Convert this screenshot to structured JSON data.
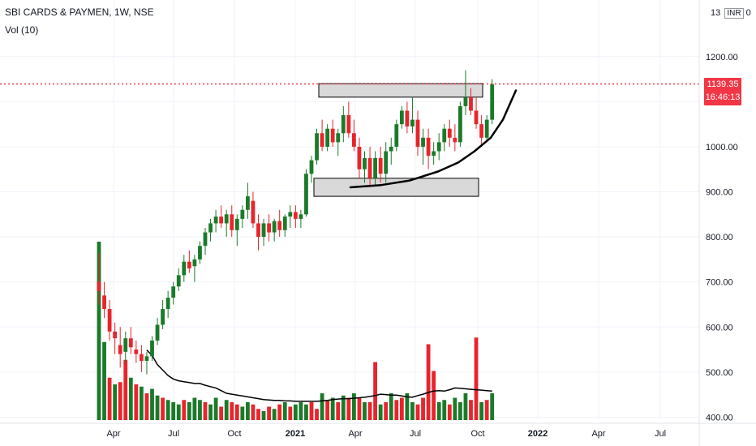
{
  "header": {
    "symbol": "SBI CARDS & PAYMEN, 1W, NSE",
    "volume_label": "Vol (10)"
  },
  "top_right": {
    "value": "13",
    "unit": "INR",
    "suffix": "0"
  },
  "last_price": {
    "price": "1139.35",
    "countdown": "16:46:13"
  },
  "colors": {
    "up": "#1b7a2a",
    "down": "#e8242c",
    "price_line": "#f23645",
    "zone_fill": "#d9d9d9",
    "curve": "#000000"
  },
  "chart_data": {
    "type": "candlestick",
    "ylim": [
      390,
      1250
    ],
    "y_ticks": [
      "1200.00",
      "1100.00",
      "1000.00",
      "900.00",
      "800.00",
      "700.00",
      "600.00",
      "500.00",
      "400.00"
    ],
    "x_ticks": [
      {
        "label": "Apr",
        "bold": false
      },
      {
        "label": "Jul",
        "bold": false
      },
      {
        "label": "Oct",
        "bold": false
      },
      {
        "label": "2021",
        "bold": true
      },
      {
        "label": "Apr",
        "bold": false
      },
      {
        "label": "Jul",
        "bold": false
      },
      {
        "label": "Oct",
        "bold": false
      },
      {
        "label": "2022",
        "bold": true
      },
      {
        "label": "Apr",
        "bold": false
      },
      {
        "label": "Jul",
        "bold": false
      }
    ],
    "candles": [
      [
        700,
        765,
        650,
        680
      ],
      [
        670,
        700,
        620,
        640
      ],
      [
        640,
        660,
        570,
        590
      ],
      [
        590,
        610,
        540,
        575
      ],
      [
        560,
        600,
        510,
        540
      ],
      [
        545,
        590,
        520,
        575
      ],
      [
        575,
        600,
        540,
        555
      ],
      [
        550,
        570,
        520,
        540
      ],
      [
        540,
        560,
        500,
        525
      ],
      [
        525,
        545,
        495,
        535
      ],
      [
        535,
        580,
        525,
        570
      ],
      [
        570,
        620,
        560,
        605
      ],
      [
        605,
        660,
        595,
        640
      ],
      [
        640,
        680,
        620,
        665
      ],
      [
        665,
        700,
        650,
        690
      ],
      [
        690,
        730,
        680,
        715
      ],
      [
        715,
        760,
        700,
        745
      ],
      [
        745,
        770,
        720,
        730
      ],
      [
        735,
        760,
        700,
        750
      ],
      [
        750,
        790,
        740,
        780
      ],
      [
        780,
        820,
        760,
        810
      ],
      [
        810,
        840,
        790,
        830
      ],
      [
        830,
        860,
        810,
        845
      ],
      [
        845,
        870,
        820,
        830
      ],
      [
        830,
        860,
        800,
        850
      ],
      [
        850,
        870,
        800,
        815
      ],
      [
        815,
        850,
        780,
        840
      ],
      [
        840,
        870,
        820,
        860
      ],
      [
        860,
        920,
        840,
        890
      ],
      [
        880,
        900,
        820,
        830
      ],
      [
        830,
        850,
        770,
        800
      ],
      [
        800,
        840,
        780,
        830
      ],
      [
        830,
        850,
        790,
        810
      ],
      [
        810,
        840,
        790,
        835
      ],
      [
        835,
        860,
        800,
        815
      ],
      [
        815,
        850,
        800,
        845
      ],
      [
        845,
        870,
        820,
        855
      ],
      [
        855,
        870,
        820,
        840
      ],
      [
        840,
        860,
        820,
        850
      ],
      [
        850,
        950,
        845,
        940
      ],
      [
        940,
        980,
        920,
        970
      ],
      [
        970,
        1040,
        960,
        1030
      ],
      [
        1030,
        1060,
        990,
        1000
      ],
      [
        1000,
        1050,
        990,
        1040
      ],
      [
        1040,
        1060,
        1000,
        1010
      ],
      [
        1010,
        1040,
        980,
        1030
      ],
      [
        1030,
        1090,
        1010,
        1070
      ],
      [
        1070,
        1100,
        1020,
        1030
      ],
      [
        1030,
        1060,
        990,
        1000
      ],
      [
        1000,
        1020,
        930,
        950
      ],
      [
        950,
        990,
        920,
        975
      ],
      [
        975,
        1000,
        910,
        930
      ],
      [
        930,
        990,
        915,
        975
      ],
      [
        975,
        1000,
        920,
        940
      ],
      [
        940,
        1010,
        920,
        990
      ],
      [
        990,
        1020,
        960,
        1000
      ],
      [
        1000,
        1060,
        990,
        1050
      ],
      [
        1050,
        1090,
        1040,
        1080
      ],
      [
        1080,
        1100,
        1030,
        1045
      ],
      [
        1045,
        1110,
        1030,
        1060
      ],
      [
        1060,
        1080,
        980,
        1000
      ],
      [
        1000,
        1040,
        960,
        1020
      ],
      [
        1020,
        1040,
        950,
        980
      ],
      [
        980,
        1010,
        960,
        990
      ],
      [
        990,
        1030,
        970,
        1010
      ],
      [
        1010,
        1050,
        990,
        1040
      ],
      [
        1040,
        1060,
        1000,
        1020
      ],
      [
        1020,
        1050,
        990,
        1010
      ],
      [
        1010,
        1100,
        1000,
        1090
      ],
      [
        1090,
        1170,
        1070,
        1110
      ],
      [
        1110,
        1130,
        1070,
        1080
      ],
      [
        1080,
        1110,
        1040,
        1050
      ],
      [
        1050,
        1070,
        1000,
        1020
      ],
      [
        1020,
        1070,
        1010,
        1060
      ],
      [
        1060,
        1150,
        1050,
        1139
      ]
    ],
    "volumes": [
      [
        400,
        "up"
      ],
      [
        175,
        "up"
      ],
      [
        95,
        "down"
      ],
      [
        80,
        "up"
      ],
      [
        85,
        "down"
      ],
      [
        135,
        "down"
      ],
      [
        95,
        "up"
      ],
      [
        80,
        "down"
      ],
      [
        75,
        "up"
      ],
      [
        60,
        "down"
      ],
      [
        70,
        "up"
      ],
      [
        55,
        "up"
      ],
      [
        50,
        "down"
      ],
      [
        45,
        "up"
      ],
      [
        40,
        "up"
      ],
      [
        35,
        "up"
      ],
      [
        45,
        "down"
      ],
      [
        40,
        "up"
      ],
      [
        50,
        "up"
      ],
      [
        45,
        "up"
      ],
      [
        40,
        "down"
      ],
      [
        35,
        "up"
      ],
      [
        50,
        "up"
      ],
      [
        30,
        "down"
      ],
      [
        45,
        "up"
      ],
      [
        40,
        "down"
      ],
      [
        35,
        "down"
      ],
      [
        30,
        "up"
      ],
      [
        40,
        "up"
      ],
      [
        35,
        "down"
      ],
      [
        25,
        "down"
      ],
      [
        20,
        "up"
      ],
      [
        30,
        "down"
      ],
      [
        25,
        "up"
      ],
      [
        35,
        "down"
      ],
      [
        40,
        "up"
      ],
      [
        30,
        "down"
      ],
      [
        35,
        "up"
      ],
      [
        40,
        "up"
      ],
      [
        35,
        "up"
      ],
      [
        40,
        "down"
      ],
      [
        25,
        "down"
      ],
      [
        60,
        "up"
      ],
      [
        45,
        "down"
      ],
      [
        50,
        "up"
      ],
      [
        40,
        "down"
      ],
      [
        55,
        "up"
      ],
      [
        50,
        "down"
      ],
      [
        60,
        "up"
      ],
      [
        50,
        "down"
      ],
      [
        40,
        "up"
      ],
      [
        40,
        "down"
      ],
      [
        130,
        "down"
      ],
      [
        35,
        "up"
      ],
      [
        40,
        "down"
      ],
      [
        60,
        "up"
      ],
      [
        45,
        "down"
      ],
      [
        50,
        "down"
      ],
      [
        60,
        "up"
      ],
      [
        40,
        "up"
      ],
      [
        35,
        "down"
      ],
      [
        50,
        "down"
      ],
      [
        170,
        "down"
      ],
      [
        110,
        "down"
      ],
      [
        40,
        "up"
      ],
      [
        45,
        "up"
      ],
      [
        35,
        "down"
      ],
      [
        50,
        "up"
      ],
      [
        40,
        "up"
      ],
      [
        60,
        "up"
      ],
      [
        45,
        "down"
      ],
      [
        185,
        "down"
      ],
      [
        40,
        "up"
      ],
      [
        45,
        "down"
      ],
      [
        60,
        "up"
      ]
    ],
    "volume_ma": [
      null,
      null,
      null,
      null,
      null,
      null,
      null,
      null,
      null,
      157,
      145,
      124,
      112,
      100,
      92,
      88,
      86,
      84,
      82,
      82,
      78,
      75,
      72,
      66,
      60,
      58,
      56,
      54,
      52,
      50,
      48,
      46,
      45,
      44,
      44,
      43,
      43,
      42,
      42,
      42,
      42,
      42,
      43,
      44,
      46,
      47,
      48,
      48,
      49,
      50,
      51,
      53,
      55,
      58,
      57,
      56,
      56,
      54,
      52,
      51,
      55,
      58,
      62,
      65,
      66,
      65,
      68,
      72,
      71,
      70,
      69,
      68,
      67,
      66,
      65
    ],
    "resistance_zone": [
      1110,
      1140
    ],
    "support_zone": [
      890,
      930
    ]
  }
}
